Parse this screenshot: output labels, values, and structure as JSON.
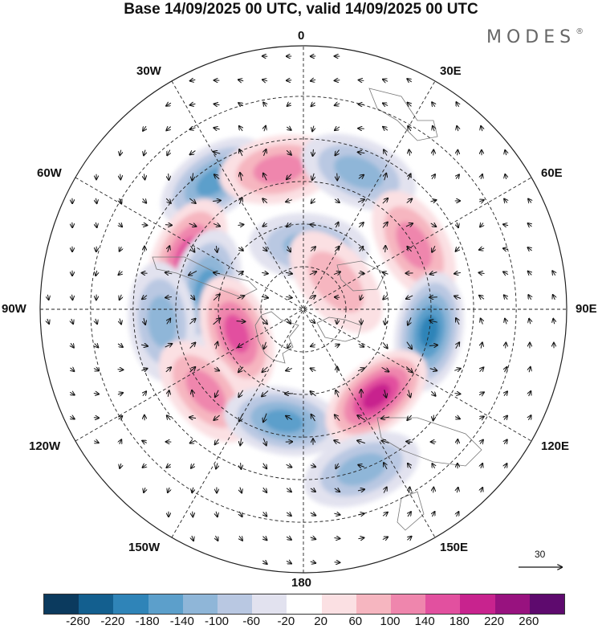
{
  "title": "Base 14/09/2025 00 UTC, valid 14/09/2025 00 UTC",
  "brand": "MODES",
  "longitude_labels": {
    "top": "0",
    "bottom": "180",
    "left": "90W",
    "right": "90E",
    "nw30": "30W",
    "ne30": "30E",
    "w60": "60W",
    "e60": "60E",
    "w120": "120W",
    "e120": "120E",
    "w150": "150W",
    "e150": "150E"
  },
  "reference_vector": {
    "value": "30"
  },
  "colorbar": {
    "colors": [
      "#0b3a5e",
      "#135f8f",
      "#2f84b8",
      "#5c9fcb",
      "#8fb6d8",
      "#b9c8e2",
      "#e2e2ef",
      "#ffffff",
      "#fbe0e3",
      "#f6b6c0",
      "#ef86ad",
      "#e2509f",
      "#c8238e",
      "#98127f",
      "#5e0a6e"
    ],
    "labels": [
      "-260",
      "-220",
      "-180",
      "-140",
      "-100",
      "-60",
      "-20",
      "20",
      "60",
      "100",
      "140",
      "180",
      "220",
      "260"
    ]
  },
  "map_anomalies": [
    {
      "v": -160,
      "lon": -35,
      "lat": -35
    },
    {
      "v": 120,
      "lon": -10,
      "lat": -40
    },
    {
      "v": -120,
      "lon": 22,
      "lat": -38
    },
    {
      "v": 150,
      "lon": -65,
      "lat": -45
    },
    {
      "v": -100,
      "lon": 5,
      "lat": -68
    },
    {
      "v": 120,
      "lon": 60,
      "lat": -45
    },
    {
      "v": -150,
      "lon": -78,
      "lat": -55
    },
    {
      "v": -100,
      "lon": -95,
      "lat": -40
    },
    {
      "v": -180,
      "lon": 100,
      "lat": -45
    },
    {
      "v": 160,
      "lon": -110,
      "lat": -65
    },
    {
      "v": 120,
      "lon": -130,
      "lat": -45
    },
    {
      "v": -170,
      "lon": -170,
      "lat": -50
    },
    {
      "v": 190,
      "lon": 140,
      "lat": -50
    },
    {
      "v": -110,
      "lon": 160,
      "lat": -30
    },
    {
      "v": 60,
      "lon": 50,
      "lat": -75
    }
  ]
}
